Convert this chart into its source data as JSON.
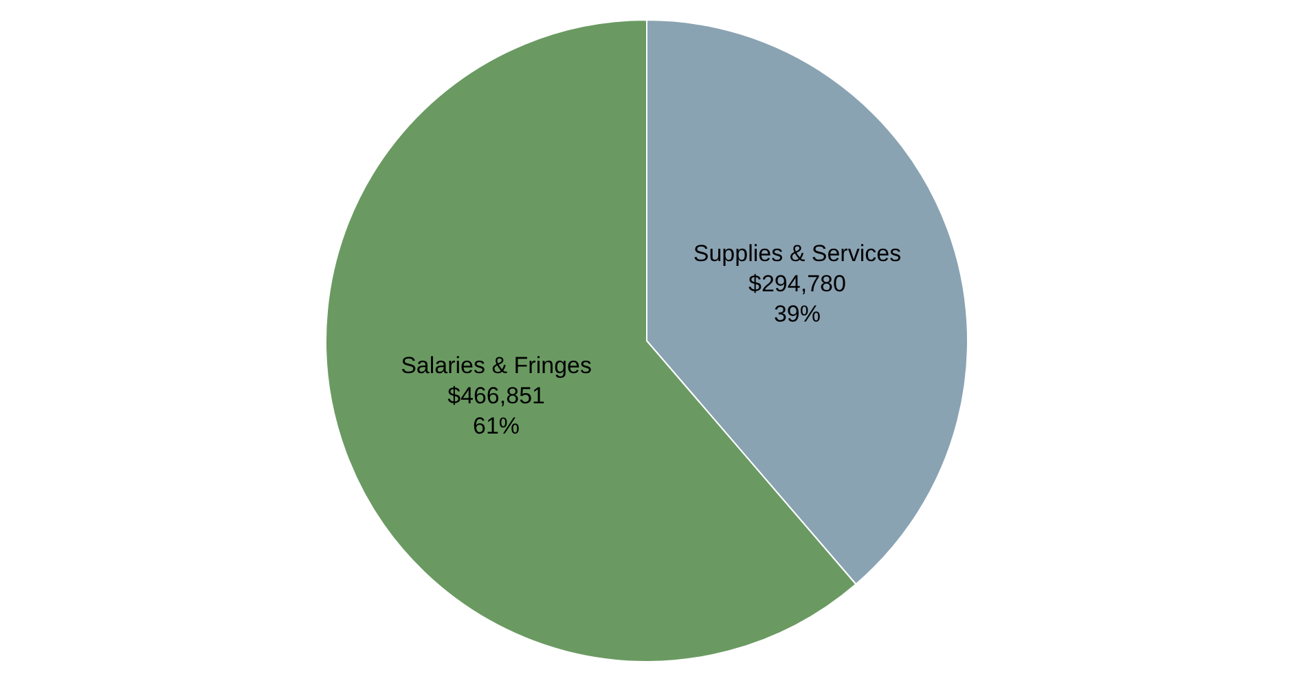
{
  "chart_data": {
    "type": "pie",
    "categories": [
      "Supplies & Services",
      "Salaries & Fringes"
    ],
    "values": [
      294780,
      466851
    ],
    "colors": [
      "#8aa3b3",
      "#6a9a62"
    ],
    "value_labels": [
      "$294,780\n39%",
      "$466,851\n61%"
    ],
    "legend": false
  }
}
